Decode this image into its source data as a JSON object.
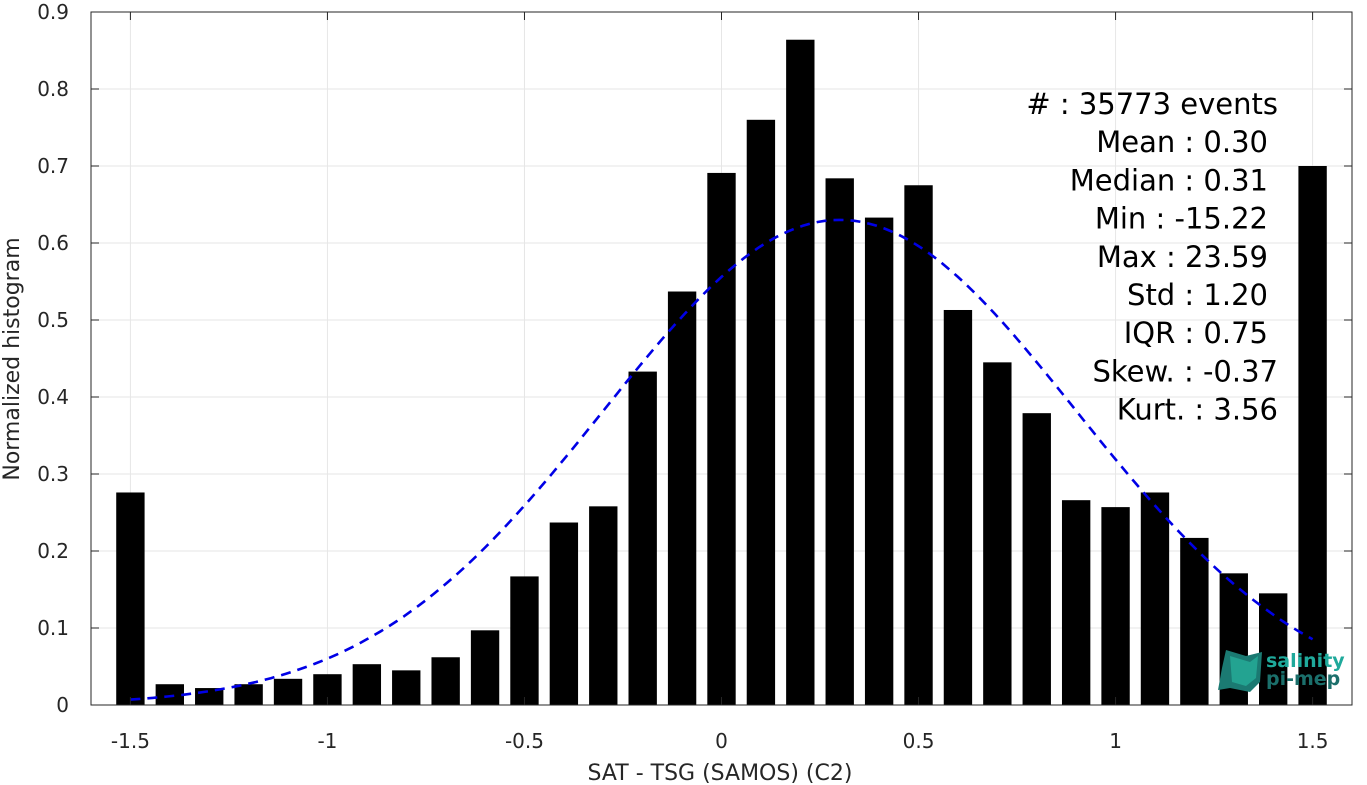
{
  "chart_data": {
    "type": "bar",
    "xlabel": "SAT - TSG (SAMOS) (C2)",
    "ylabel": "Normalized histogram",
    "xlim": [
      -1.6,
      1.6
    ],
    "ylim": [
      0,
      0.9
    ],
    "xticks": [
      -1.5,
      -1,
      -0.5,
      0,
      0.5,
      1,
      1.5
    ],
    "xtick_labels": [
      "-1.5",
      "-1",
      "-0.5",
      "0",
      "0.5",
      "1",
      "1.5"
    ],
    "yticks": [
      0,
      0.1,
      0.2,
      0.3,
      0.4,
      0.5,
      0.6,
      0.7,
      0.8,
      0.9
    ],
    "ytick_labels": [
      "0",
      "0.1",
      "0.2",
      "0.3",
      "0.4",
      "0.5",
      "0.6",
      "0.7",
      "0.8",
      "0.9"
    ],
    "grid": true,
    "bar_color": "#000000",
    "bins": [
      -1.5,
      -1.4,
      -1.3,
      -1.2,
      -1.1,
      -1.0,
      -0.9,
      -0.8,
      -0.7,
      -0.6,
      -0.5,
      -0.4,
      -0.3,
      -0.2,
      -0.1,
      0.0,
      0.1,
      0.2,
      0.3,
      0.4,
      0.5,
      0.6,
      0.7,
      0.8,
      0.9,
      1.0,
      1.1,
      1.2,
      1.3,
      1.4,
      1.5
    ],
    "values": [
      0.276,
      0.027,
      0.022,
      0.027,
      0.034,
      0.04,
      0.053,
      0.045,
      0.062,
      0.097,
      0.167,
      0.237,
      0.258,
      0.433,
      0.537,
      0.691,
      0.76,
      0.864,
      0.684,
      0.633,
      0.675,
      0.513,
      0.445,
      0.379,
      0.266,
      0.257,
      0.276,
      0.217,
      0.171,
      0.145,
      0.7
    ],
    "fit_curve": {
      "style": "dashed",
      "color": "#0000e6",
      "mean": 0.3,
      "std": 0.6,
      "peak": 0.63,
      "x_range": [
        -1.5,
        1.5
      ]
    },
    "stats": [
      "#  : 35773 events",
      "Mean : 0.30",
      "Median : 0.31",
      "Min : -15.22",
      "Max : 23.59",
      "Std : 1.20",
      "IQR : 0.75",
      "Skew. : -0.37",
      "Kurt. : 3.56"
    ]
  },
  "logo": {
    "line1": "salinity",
    "line2": "pi-mep"
  },
  "colors": {
    "logo_teal": "#1fa99b",
    "logo_dark": "#1b6f6b"
  }
}
